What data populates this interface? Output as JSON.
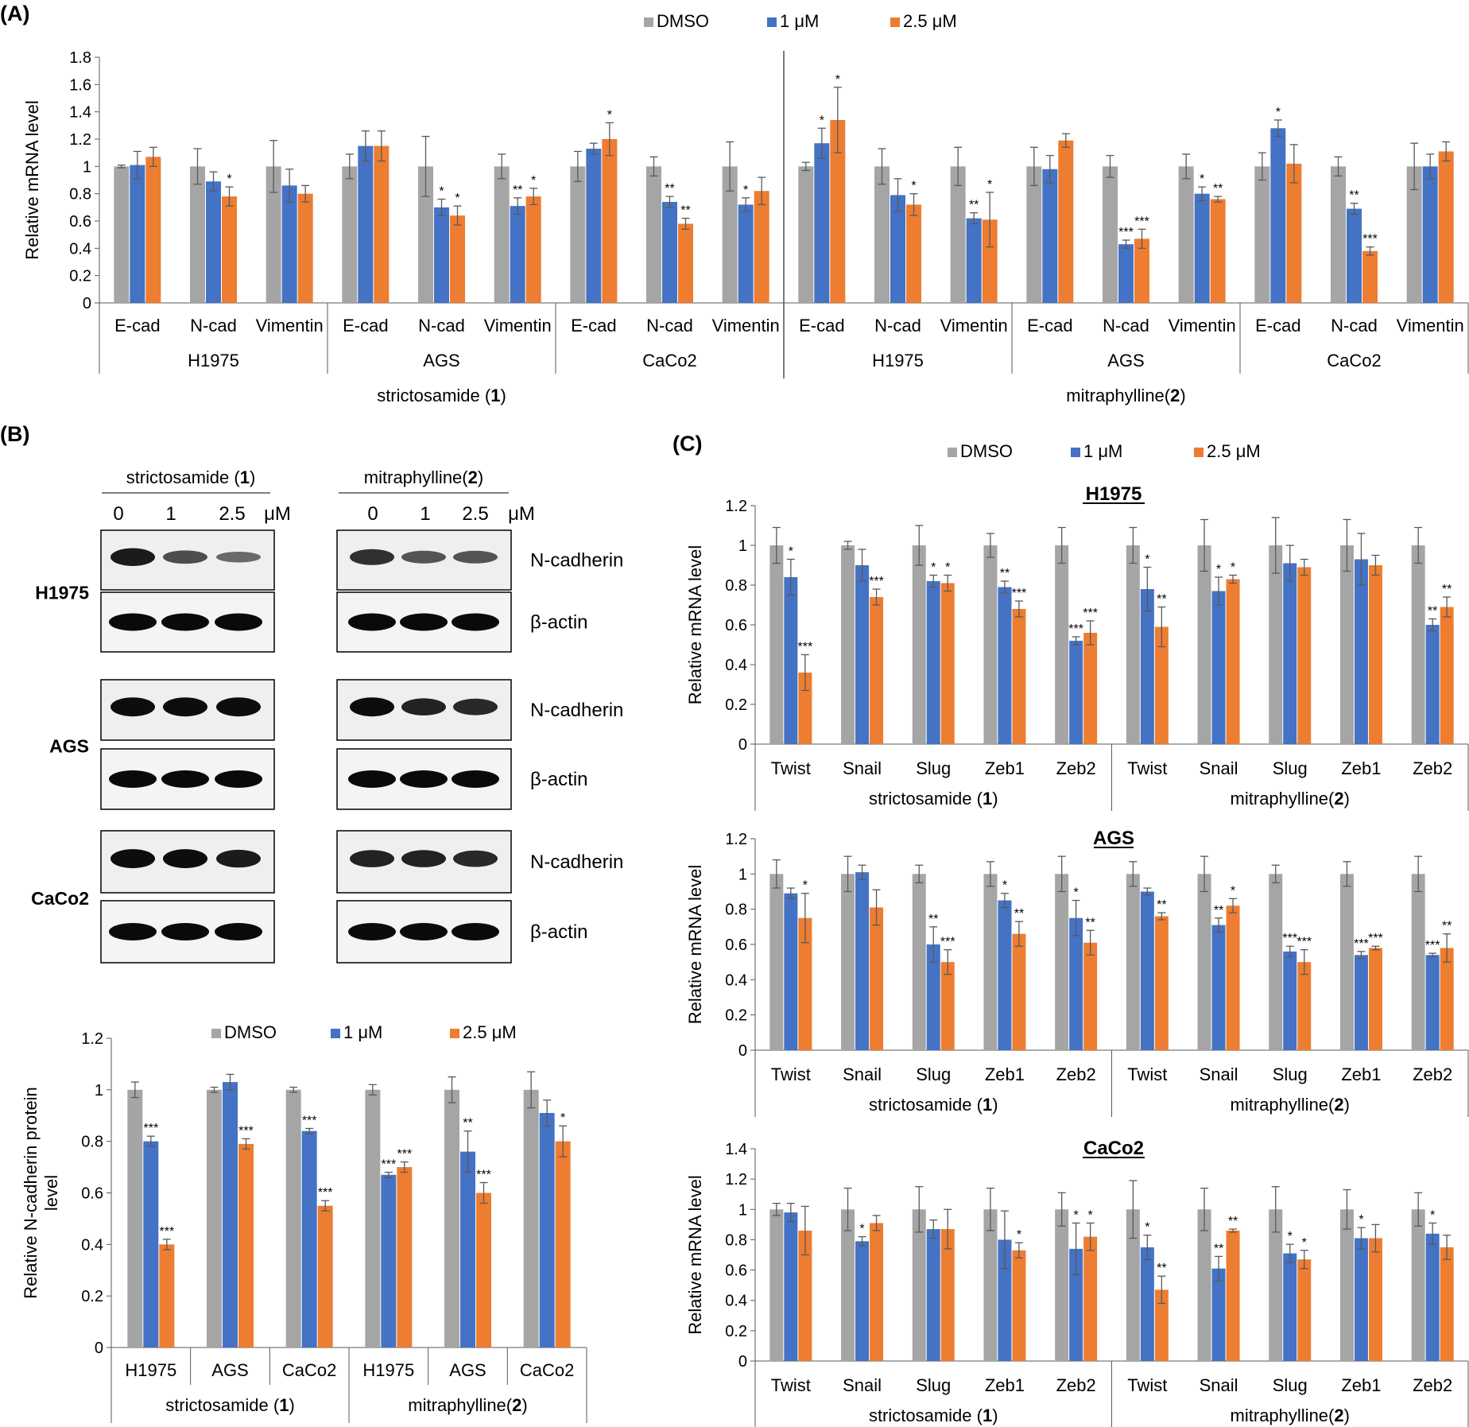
{
  "colors": {
    "dmso": "#a5a5a5",
    "low": "#4472c4",
    "high": "#ed7d31",
    "err": "#595959",
    "axis": "#595959",
    "grid": "#bfbfbf"
  },
  "legend": [
    "DMSO",
    "1 μM",
    "2.5 μM"
  ],
  "panel_labels": {
    "A": "(A)",
    "B": "(B)",
    "C": "(C)"
  },
  "compounds": [
    "strictosamide (1)",
    "mitraphylline(2)"
  ],
  "western_blot": {
    "headers": [
      "strictosamide (1)",
      "mitraphylline(2)"
    ],
    "doses": [
      "0",
      "1",
      "2.5",
      "μM"
    ],
    "cells": [
      "H1975",
      "AGS",
      "CaCo2"
    ],
    "bands": [
      "N-cadherin",
      "β-actin"
    ],
    "n_cadherin_intensity": [
      {
        "cell": "H1975",
        "strictosamide": [
          0.9,
          0.55,
          0.35
        ],
        "mitraphylline": [
          0.75,
          0.5,
          0.5
        ]
      },
      {
        "cell": "AGS",
        "strictosamide": [
          1.0,
          1.0,
          1.0
        ],
        "mitraphylline": [
          1.0,
          0.85,
          0.8
        ]
      },
      {
        "cell": "CaCo2",
        "strictosamide": [
          1.0,
          1.0,
          0.9
        ],
        "mitraphylline": [
          0.85,
          0.85,
          0.8
        ]
      }
    ]
  },
  "chart_data": [
    {
      "id": "A",
      "type": "bar",
      "ylabel": "Relative mRNA level",
      "ylim": [
        0,
        1.8
      ],
      "yticks": [
        "0",
        "0.2",
        "0.4",
        "0.6",
        "0.8",
        "1",
        "1.2",
        "1.4",
        "1.6",
        "1.8"
      ],
      "genes": [
        "E-cad",
        "N-cad",
        "Vimentin"
      ],
      "cells": [
        "H1975",
        "AGS",
        "CaCo2"
      ],
      "compounds": [
        "strictosamide (1)",
        "mitraphylline(2)"
      ],
      "series": [
        {
          "name": "DMSO",
          "values": [
            1.0,
            1.0,
            1.0,
            1.0,
            1.0,
            1.0,
            1.0,
            1.0,
            1.0,
            1.0,
            1.0,
            1.0,
            1.0,
            1.0,
            1.0,
            1.0,
            1.0,
            1.0
          ]
        },
        {
          "name": "1 μM",
          "values": [
            1.01,
            0.89,
            0.86,
            1.15,
            0.7,
            0.71,
            1.13,
            0.74,
            0.72,
            1.17,
            0.79,
            0.62,
            0.98,
            0.43,
            0.8,
            1.28,
            0.69,
            1.0
          ]
        },
        {
          "name": "2.5 μM",
          "values": [
            1.07,
            0.78,
            0.8,
            1.15,
            0.64,
            0.78,
            1.2,
            0.58,
            0.82,
            1.34,
            0.72,
            0.61,
            1.19,
            0.47,
            0.76,
            1.02,
            0.38,
            1.11
          ]
        }
      ],
      "errors": [
        [
          0.01,
          0.13,
          0.19,
          0.09,
          0.22,
          0.09,
          0.11,
          0.07,
          0.18,
          0.03,
          0.13,
          0.14,
          0.14,
          0.08,
          0.09,
          0.1,
          0.07,
          0.17
        ],
        [
          0.1,
          0.07,
          0.12,
          0.11,
          0.06,
          0.06,
          0.04,
          0.04,
          0.05,
          0.11,
          0.12,
          0.04,
          0.1,
          0.03,
          0.05,
          0.06,
          0.04,
          0.09
        ],
        [
          0.07,
          0.07,
          0.06,
          0.11,
          0.07,
          0.06,
          0.12,
          0.04,
          0.1,
          0.24,
          0.08,
          0.2,
          0.05,
          0.07,
          0.02,
          0.14,
          0.03,
          0.07
        ]
      ],
      "annotations": [
        [
          "",
          "",
          "",
          "",
          "",
          "",
          "",
          "",
          "",
          "",
          "",
          "",
          "",
          "",
          "",
          "",
          "",
          ""
        ],
        [
          "",
          "",
          "",
          "",
          "*",
          "**",
          "",
          "**",
          "*",
          "*",
          "",
          "**",
          "",
          "***",
          "*",
          "*",
          "**",
          ""
        ],
        [
          "",
          "*",
          "",
          "",
          "*",
          "*",
          "*",
          "**",
          "",
          "*",
          "*",
          "*",
          "",
          "***",
          "**",
          "",
          "***",
          ""
        ]
      ]
    },
    {
      "id": "B",
      "type": "bar",
      "ylabel": "Relative N-cadherin protein level",
      "ylim": [
        0,
        1.2
      ],
      "yticks": [
        "0",
        "0.2",
        "0.4",
        "0.6",
        "0.8",
        "1",
        "1.2"
      ],
      "categories": [
        "H1975",
        "AGS",
        "CaCo2",
        "H1975",
        "AGS",
        "CaCo2"
      ],
      "compounds": [
        "strictosamide (1)",
        "mitraphylline(2)"
      ],
      "series": [
        {
          "name": "DMSO",
          "values": [
            1.0,
            1.0,
            1.0,
            1.0,
            1.0,
            1.0
          ]
        },
        {
          "name": "1 μM",
          "values": [
            0.8,
            1.03,
            0.84,
            0.67,
            0.76,
            0.91
          ]
        },
        {
          "name": "2.5 μM",
          "values": [
            0.4,
            0.79,
            0.55,
            0.7,
            0.6,
            0.8
          ]
        }
      ],
      "errors": [
        [
          0.03,
          0.01,
          0.01,
          0.02,
          0.05,
          0.07
        ],
        [
          0.02,
          0.03,
          0.01,
          0.01,
          0.08,
          0.05
        ],
        [
          0.02,
          0.02,
          0.02,
          0.02,
          0.04,
          0.06
        ]
      ],
      "annotations": [
        [
          "",
          "",
          "",
          "",
          "",
          ""
        ],
        [
          "***",
          "",
          "***",
          "***",
          "**",
          ""
        ],
        [
          "***",
          "***",
          "***",
          "***",
          "***",
          "*"
        ]
      ]
    },
    {
      "id": "C-H1975",
      "type": "bar",
      "title": "H1975",
      "ylabel": "Relative mRNA level",
      "ylim": [
        0,
        1.2
      ],
      "yticks": [
        "0",
        "0.2",
        "0.4",
        "0.6",
        "0.8",
        "1",
        "1.2"
      ],
      "genes": [
        "Twist",
        "Snail",
        "Slug",
        "Zeb1",
        "Zeb2"
      ],
      "compounds": [
        "strictosamide (1)",
        "mitraphylline(2)"
      ],
      "series": [
        {
          "name": "DMSO",
          "values": [
            1.0,
            1.0,
            1.0,
            1.0,
            1.0,
            1.0,
            1.0,
            1.0,
            1.0,
            1.0
          ]
        },
        {
          "name": "1 μM",
          "values": [
            0.84,
            0.9,
            0.82,
            0.79,
            0.52,
            0.78,
            0.77,
            0.91,
            0.93,
            0.6
          ]
        },
        {
          "name": "2.5 μM",
          "values": [
            0.36,
            0.74,
            0.81,
            0.68,
            0.56,
            0.59,
            0.83,
            0.89,
            0.9,
            0.69
          ]
        }
      ],
      "errors": [
        [
          0.09,
          0.02,
          0.1,
          0.06,
          0.09,
          0.09,
          0.13,
          0.14,
          0.13,
          0.09
        ],
        [
          0.09,
          0.08,
          0.03,
          0.03,
          0.02,
          0.11,
          0.07,
          0.09,
          0.13,
          0.03
        ],
        [
          0.09,
          0.04,
          0.04,
          0.04,
          0.06,
          0.1,
          0.02,
          0.04,
          0.05,
          0.05
        ]
      ],
      "annotations": [
        [
          "",
          "",
          "",
          "",
          "",
          "",
          "",
          "",
          "",
          ""
        ],
        [
          "*",
          "",
          "*",
          "**",
          "***",
          "*",
          "*",
          "",
          "",
          "**"
        ],
        [
          "***",
          "***",
          "*",
          "***",
          "***",
          "**",
          "*",
          "",
          "",
          "**"
        ]
      ]
    },
    {
      "id": "C-AGS",
      "type": "bar",
      "title": "AGS",
      "ylabel": "Relative mRNA level",
      "ylim": [
        0,
        1.2
      ],
      "yticks": [
        "0",
        "0.2",
        "0.4",
        "0.6",
        "0.8",
        "1",
        "1.2"
      ],
      "genes": [
        "Twist",
        "Snail",
        "Slug",
        "Zeb1",
        "Zeb2"
      ],
      "compounds": [
        "strictosamide (1)",
        "mitraphylline(2)"
      ],
      "series": [
        {
          "name": "DMSO",
          "values": [
            1.0,
            1.0,
            1.0,
            1.0,
            1.0,
            1.0,
            1.0,
            1.0,
            1.0,
            1.0
          ]
        },
        {
          "name": "1 μM",
          "values": [
            0.89,
            1.01,
            0.6,
            0.85,
            0.75,
            0.9,
            0.71,
            0.56,
            0.54,
            0.54
          ]
        },
        {
          "name": "2.5 μM",
          "values": [
            0.75,
            0.81,
            0.5,
            0.66,
            0.61,
            0.76,
            0.82,
            0.5,
            0.58,
            0.58
          ]
        }
      ],
      "errors": [
        [
          0.08,
          0.1,
          0.05,
          0.07,
          0.1,
          0.07,
          0.1,
          0.05,
          0.07,
          0.1
        ],
        [
          0.03,
          0.04,
          0.1,
          0.04,
          0.1,
          0.02,
          0.04,
          0.03,
          0.02,
          0.01
        ],
        [
          0.14,
          0.1,
          0.07,
          0.07,
          0.07,
          0.02,
          0.04,
          0.07,
          0.01,
          0.08
        ]
      ],
      "annotations": [
        [
          "",
          "",
          "",
          "",
          "",
          "",
          "",
          "",
          "",
          ""
        ],
        [
          "",
          "",
          "**",
          "*",
          "*",
          "",
          "**",
          "***",
          "***",
          "***"
        ],
        [
          "*",
          "",
          "***",
          "**",
          "**",
          "**",
          "*",
          "***",
          "***",
          "**"
        ]
      ]
    },
    {
      "id": "C-CaCo2",
      "type": "bar",
      "title": "CaCo2",
      "ylabel": "Relative mRNA level",
      "ylim": [
        0,
        1.4
      ],
      "yticks": [
        "0",
        "0.2",
        "0.4",
        "0.6",
        "0.8",
        "1",
        "1.2",
        "1.4"
      ],
      "genes": [
        "Twist",
        "Snail",
        "Slug",
        "Zeb1",
        "Zeb2"
      ],
      "compounds": [
        "strictosamide (1)",
        "mitraphylline(2)"
      ],
      "series": [
        {
          "name": "DMSO",
          "values": [
            1.0,
            1.0,
            1.0,
            1.0,
            1.0,
            1.0,
            1.0,
            1.0,
            1.0,
            1.0
          ]
        },
        {
          "name": "1 μM",
          "values": [
            0.98,
            0.79,
            0.87,
            0.8,
            0.74,
            0.75,
            0.61,
            0.71,
            0.81,
            0.84
          ]
        },
        {
          "name": "2.5 μM",
          "values": [
            0.86,
            0.91,
            0.87,
            0.73,
            0.82,
            0.47,
            0.86,
            0.67,
            0.81,
            0.75
          ]
        }
      ],
      "errors": [
        [
          0.04,
          0.14,
          0.15,
          0.14,
          0.11,
          0.19,
          0.14,
          0.15,
          0.13,
          0.11
        ],
        [
          0.06,
          0.03,
          0.06,
          0.19,
          0.17,
          0.08,
          0.08,
          0.06,
          0.07,
          0.07
        ],
        [
          0.16,
          0.05,
          0.13,
          0.05,
          0.09,
          0.09,
          0.01,
          0.06,
          0.09,
          0.08
        ]
      ],
      "annotations": [
        [
          "",
          "",
          "",
          "",
          "",
          "",
          "",
          "",
          "",
          ""
        ],
        [
          "",
          "*",
          "",
          "",
          "*",
          "*",
          "**",
          "*",
          "*",
          "*"
        ],
        [
          "",
          "",
          "",
          "*",
          "*",
          "**",
          "**",
          "*",
          "",
          ""
        ]
      ]
    }
  ]
}
